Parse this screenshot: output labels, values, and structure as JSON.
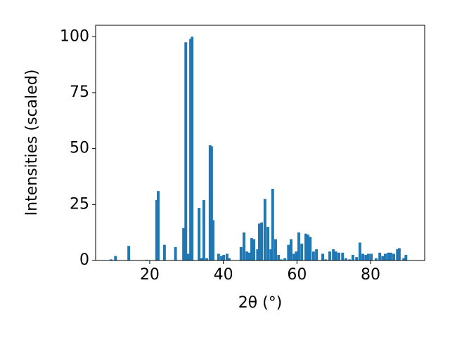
{
  "chart_data": {
    "type": "bar",
    "x_label": "2θ (°)",
    "y_label": "Intensities (scaled)",
    "color": "#1f77b4",
    "xlim": [
      5.3,
      94.7
    ],
    "xticks": [
      20,
      40,
      60,
      80
    ],
    "ylim": [
      0,
      105.1
    ],
    "yticks": [
      0,
      25,
      50,
      75,
      100
    ],
    "grid": false,
    "x": [
      9.5,
      10.7,
      14.3,
      19.2,
      21.9,
      22.3,
      24,
      27,
      29.2,
      29.8,
      30.5,
      31.1,
      31.5,
      33.4,
      34.1,
      34.7,
      35.5,
      36.4,
      36.8,
      37.2,
      38.7,
      39.5,
      40.1,
      41,
      41.6,
      44.8,
      45.6,
      46.4,
      47.1,
      47.7,
      48.3,
      49.3,
      49.8,
      50.4,
      51.3,
      52.1,
      52.9,
      53.4,
      54.2,
      55,
      55.7,
      56.7,
      57.7,
      58.4,
      59.2,
      59.8,
      60.5,
      61.3,
      62.4,
      63,
      63.6,
      64.5,
      65.3,
      67,
      67.8,
      68.9,
      69.9,
      70.6,
      71.4,
      72.4,
      73.3,
      74.3,
      75.2,
      76.2,
      77.1,
      77.9,
      78.7,
      79.4,
      80.2,
      81.5,
      82.5,
      83.3,
      84,
      84.8,
      85.5,
      86.3,
      87.3,
      87.8,
      89,
      89.6
    ],
    "values": [
      0.5,
      2,
      6.5,
      0.3,
      27,
      31,
      7,
      6,
      14.5,
      97.5,
      3,
      99,
      100,
      23.5,
      1,
      27,
      1,
      51.5,
      51,
      18,
      3,
      2,
      2.5,
      3,
      1,
      6,
      12.5,
      4,
      3.5,
      10,
      9.5,
      5,
      16.5,
      17,
      27.5,
      15,
      5,
      32,
      9.5,
      2.5,
      0.5,
      1,
      7,
      9.5,
      3,
      4,
      12.5,
      7.5,
      12,
      11.5,
      10.5,
      4,
      5,
      3,
      0.5,
      4,
      5,
      4,
      3.5,
      3.5,
      1,
      0.5,
      2.5,
      1.5,
      8,
      3,
      2.5,
      3,
      3,
      1,
      3.5,
      2,
      3,
      3.5,
      3.5,
      3,
      5,
      5.5,
      1,
      2.5
    ]
  }
}
